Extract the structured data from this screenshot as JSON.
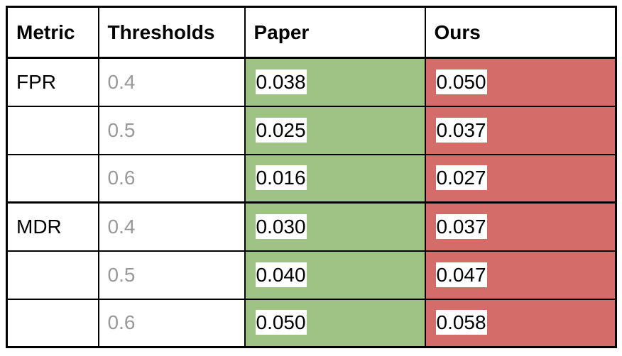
{
  "table": {
    "header": [
      "Metric",
      "Thresholds",
      "Paper",
      "Ours"
    ],
    "groups": [
      {
        "metric": "FPR",
        "rows": [
          {
            "threshold": "0.4",
            "paper": "0.038",
            "ours": "0.050"
          },
          {
            "threshold": "0.5",
            "paper": "0.025",
            "ours": "0.037"
          },
          {
            "threshold": "0.6",
            "paper": "0.016",
            "ours": "0.027"
          }
        ]
      },
      {
        "metric": "MDR",
        "rows": [
          {
            "threshold": "0.4",
            "paper": "0.030",
            "ours": "0.037"
          },
          {
            "threshold": "0.5",
            "paper": "0.040",
            "ours": "0.047"
          },
          {
            "threshold": "0.6",
            "paper": "0.050",
            "ours": "0.058"
          }
        ]
      }
    ]
  }
}
